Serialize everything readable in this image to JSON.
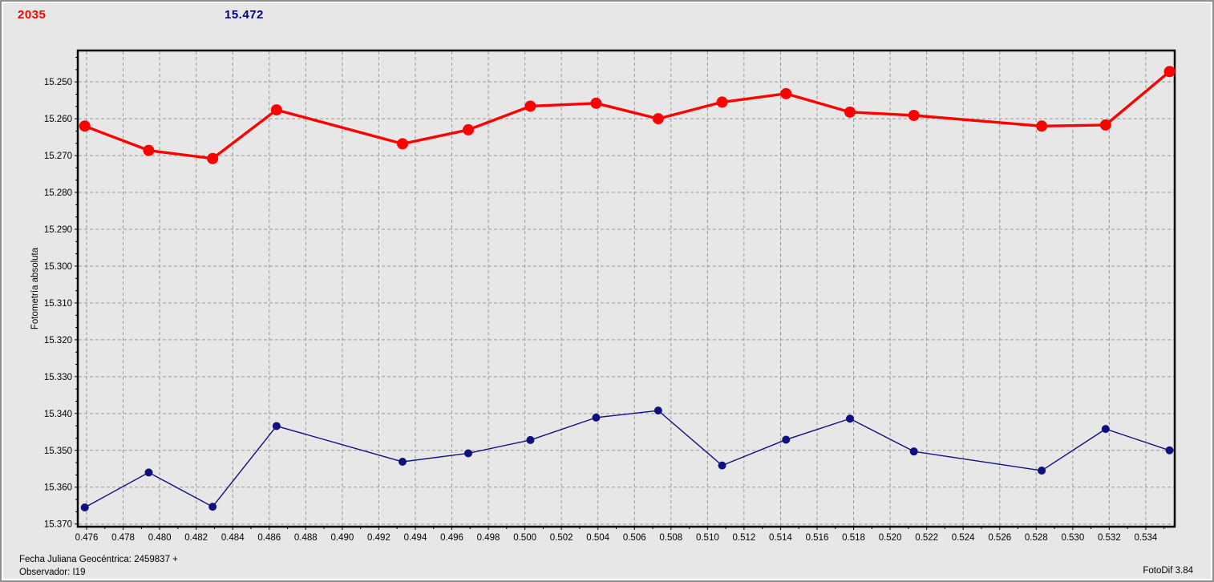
{
  "header": {
    "object_number": "2035",
    "reference_value": "15.472"
  },
  "footer": {
    "julian_date_line": "Fecha Juliana Geocéntrica: 2459837 +",
    "observer_line": "Observador: I19",
    "app_version": "FotoDif 3.84"
  },
  "colors": {
    "background": "#e7e7e7",
    "grid": "#989898",
    "axis_border": "#000000",
    "header_object": "#ff0000",
    "header_reference": "#000080",
    "series_red": "#ff0000",
    "series_blue": "#10107e"
  },
  "chart_data": {
    "type": "line",
    "title": "",
    "xlabel": "",
    "ylabel": "Fotometría absoluta",
    "y_inverted": true,
    "grid": true,
    "legend": "none",
    "xlim": [
      0.47556,
      0.53554
    ],
    "ylim": [
      15.2417,
      15.3705
    ],
    "x_tick_labels": [
      "0.476",
      "0.478",
      "0.480",
      "0.482",
      "0.484",
      "0.486",
      "0.488",
      "0.490",
      "0.492",
      "0.494",
      "0.496",
      "0.498",
      "0.500",
      "0.502",
      "0.504",
      "0.506",
      "0.508",
      "0.510",
      "0.512",
      "0.514",
      "0.516",
      "0.518",
      "0.520",
      "0.522",
      "0.524",
      "0.526",
      "0.528",
      "0.530",
      "0.532",
      "0.534"
    ],
    "y_tick_labels": [
      "15.250",
      "15.260",
      "15.270",
      "15.280",
      "15.290",
      "15.300",
      "15.310",
      "15.320",
      "15.330",
      "15.340",
      "15.350",
      "15.360",
      "15.370"
    ],
    "x": [
      0.4759,
      0.4794,
      0.4829,
      0.4864,
      0.4933,
      0.4969,
      0.5003,
      0.5039,
      0.5073,
      0.5108,
      0.5143,
      0.5178,
      0.5213,
      0.5283,
      0.5318,
      0.5353
    ],
    "series": [
      {
        "name": "upper-red-series",
        "color": "#ff0000",
        "line_width": 3.4,
        "marker_radius": 7,
        "values": [
          15.262,
          15.2686,
          15.2708,
          15.2576,
          15.2668,
          15.263,
          15.2566,
          15.2558,
          15.26,
          15.2555,
          15.2532,
          15.2582,
          15.2591,
          15.262,
          15.2617,
          15.2472
        ]
      },
      {
        "name": "lower-blue-series",
        "color": "#10107e",
        "line_width": 1.4,
        "marker_radius": 5,
        "values": [
          15.3655,
          15.356,
          15.3653,
          15.3434,
          15.3531,
          15.3508,
          15.3472,
          15.3411,
          15.3392,
          15.3541,
          15.3471,
          15.3414,
          15.3503,
          15.3555,
          15.3442,
          15.35
        ]
      }
    ]
  }
}
